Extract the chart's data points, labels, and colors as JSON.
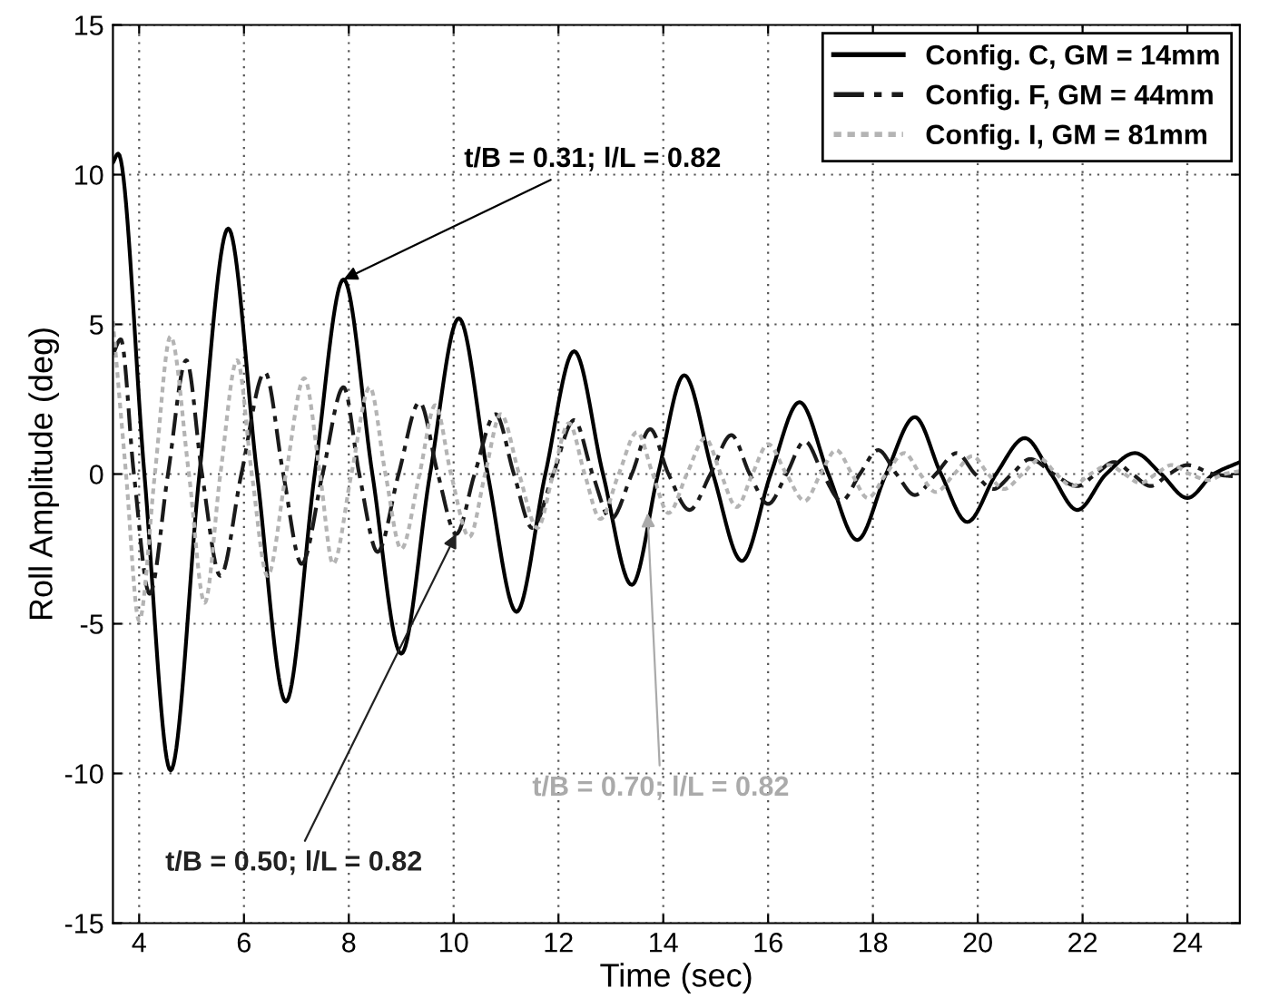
{
  "chart_data": {
    "type": "line",
    "xlabel": "Time (sec)",
    "ylabel": "Roll Amplitude (deg)",
    "xlim": [
      3.5,
      25
    ],
    "ylim": [
      -15,
      15
    ],
    "xticks": [
      4,
      6,
      8,
      10,
      12,
      14,
      16,
      18,
      20,
      22,
      24
    ],
    "yticks": [
      -15,
      -10,
      -5,
      0,
      5,
      10,
      15
    ],
    "grid": true,
    "legend": "top right",
    "marker": "none",
    "series": [
      {
        "name": "Config. C, GM = 14mm",
        "color": "#000000",
        "line_style": "solid",
        "x": [
          3.5,
          3.6,
          4.1,
          4.6,
          5.15,
          5.7,
          6.25,
          6.8,
          7.35,
          7.9,
          8.45,
          9.0,
          9.55,
          10.1,
          10.65,
          11.2,
          11.75,
          12.3,
          12.85,
          13.4,
          13.9,
          14.4,
          14.95,
          15.5,
          16.05,
          16.6,
          17.15,
          17.7,
          18.25,
          18.8,
          19.3,
          19.8,
          20.35,
          20.9,
          21.4,
          21.9,
          22.45,
          23.0,
          23.5,
          24.0,
          24.5,
          25
        ],
        "values": [
          10.4,
          10.7,
          0,
          -9.9,
          0,
          8.2,
          0,
          -7.6,
          0,
          6.5,
          0,
          -6.0,
          0,
          5.2,
          0,
          -4.6,
          0,
          4.1,
          0,
          -3.7,
          0,
          3.3,
          0,
          -2.9,
          0,
          2.4,
          0,
          -2.2,
          0,
          1.9,
          0,
          -1.6,
          0,
          1.2,
          0,
          -1.2,
          0,
          0.7,
          0,
          -0.8,
          0,
          0.4
        ]
      },
      {
        "name": "Config. F, GM = 44mm",
        "color": "#1a1a1a",
        "line_style": "dashed",
        "x": [
          3.5,
          3.65,
          3.9,
          4.2,
          4.55,
          4.9,
          5.2,
          5.55,
          5.95,
          6.4,
          6.75,
          7.1,
          7.5,
          7.9,
          8.2,
          8.55,
          8.95,
          9.35,
          9.7,
          10.05,
          10.4,
          10.8,
          11.15,
          11.5,
          11.9,
          12.3,
          12.65,
          13.0,
          13.4,
          13.75,
          14.1,
          14.5,
          14.9,
          15.3,
          15.65,
          16.0,
          16.35,
          16.7,
          17.05,
          17.4,
          17.75,
          18.1,
          18.45,
          18.8,
          19.2,
          19.6,
          19.95,
          20.3,
          20.65,
          21.0,
          21.45,
          21.9,
          22.25,
          22.6,
          22.95,
          23.3,
          23.65,
          24.0,
          24.5,
          25
        ],
        "values": [
          4.0,
          4.5,
          0,
          -4.0,
          0,
          3.8,
          0,
          -3.4,
          0,
          3.4,
          0,
          -3.0,
          0,
          2.9,
          0,
          -2.6,
          0,
          2.4,
          0,
          -2.0,
          0,
          2.0,
          0,
          -1.8,
          0,
          1.8,
          0,
          -1.5,
          0,
          1.5,
          0,
          -1.2,
          0,
          1.3,
          0,
          -1.0,
          0,
          1.1,
          0,
          -0.9,
          0,
          0.8,
          0,
          -0.7,
          0,
          0.7,
          0,
          -0.5,
          0,
          0.5,
          0,
          -0.4,
          0,
          0.4,
          0,
          -0.4,
          0,
          0.3,
          0,
          -0.1
        ]
      },
      {
        "name": "Config. I, GM = 81mm",
        "color": "#b4b4b4",
        "line_style": "dotted",
        "x": [
          3.5,
          3.75,
          4.0,
          4.3,
          4.6,
          4.95,
          5.25,
          5.55,
          5.87,
          6.15,
          6.45,
          6.8,
          7.15,
          7.45,
          7.7,
          8.05,
          8.4,
          8.7,
          9.0,
          9.35,
          9.65,
          9.95,
          10.3,
          10.6,
          10.9,
          11.25,
          11.6,
          11.9,
          12.2,
          12.5,
          12.8,
          13.15,
          13.5,
          13.8,
          14.1,
          14.45,
          14.8,
          15.1,
          15.4,
          15.7,
          16.0,
          16.35,
          16.7,
          17.0,
          17.3,
          17.6,
          17.9,
          18.25,
          18.6,
          18.9,
          19.2,
          19.55,
          19.9,
          20.2,
          20.5,
          20.85,
          21.2,
          21.5,
          21.8,
          22.15,
          22.5,
          22.8,
          23.1,
          23.4,
          23.7,
          24.05,
          24.4,
          24.7,
          25
        ],
        "values": [
          5.1,
          0,
          -4.9,
          0,
          4.6,
          0,
          -4.3,
          0,
          3.8,
          0,
          -3.4,
          0,
          3.2,
          0,
          -3.0,
          0,
          2.9,
          0,
          -2.5,
          0,
          2.3,
          0,
          -2.1,
          0,
          2.0,
          0,
          -1.8,
          0,
          1.7,
          0,
          -1.5,
          0,
          1.4,
          0,
          -1.3,
          0,
          1.2,
          0,
          -1.1,
          0,
          1.0,
          0,
          -0.9,
          0,
          0.8,
          0,
          -0.8,
          0,
          0.7,
          0,
          -0.6,
          0,
          0.6,
          0,
          -0.5,
          0,
          0.5,
          0,
          -0.4,
          0,
          0.3,
          0,
          -0.3,
          0,
          0.3,
          0,
          -0.2,
          0,
          0.1
        ]
      }
    ],
    "annotations": [
      {
        "text": "t/B = 0.31; l/L = 0.82",
        "x": 7.9,
        "y": 6.5
      },
      {
        "text": "t/B = 0.50; l/L = 0.82",
        "x": 10.05,
        "y": -2.0
      },
      {
        "text": "t/B = 0.70; l/L = 0.82",
        "x": 13.7,
        "y": -1.3
      }
    ]
  }
}
